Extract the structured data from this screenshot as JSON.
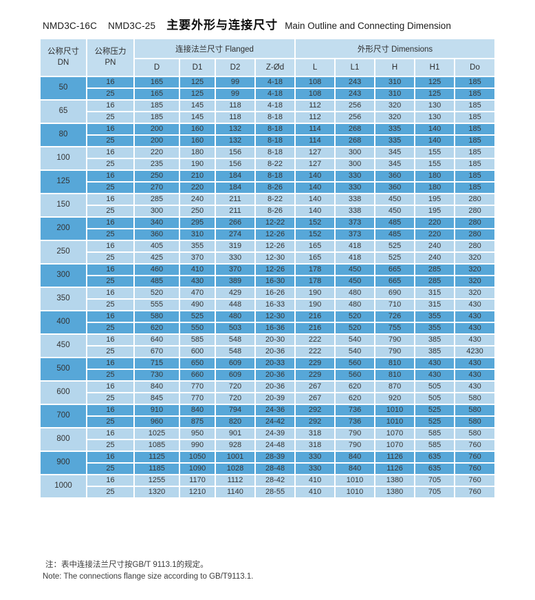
{
  "title": {
    "model_a": "NMD3C-16C",
    "model_b": "NMD3C-25",
    "heading_cn": "主要外形与连接尺寸",
    "heading_en": "Main Outline and Connecting Dimension"
  },
  "colors": {
    "band_dark": "#57a7d8",
    "band_light": "#b5d6ec",
    "header_bg": "#c2ddef",
    "grid_line": "#ffffff",
    "text": "#333333"
  },
  "table": {
    "header": {
      "dn_cn": "公称尺寸",
      "dn_en": "DN",
      "pn_cn": "公称压力",
      "pn_en": "PN",
      "flanged_group": "连接法兰尺寸 Flanged",
      "dimensions_group": "外形尺寸 Dimensions",
      "flanged_cols": [
        "D",
        "D1",
        "D2",
        "Z-Ød"
      ],
      "dimension_cols": [
        "L",
        "L1",
        "H",
        "H1",
        "Do"
      ]
    },
    "groups": [
      {
        "dn": "50",
        "rows": [
          [
            "16",
            "165",
            "125",
            "99",
            "4-18",
            "108",
            "243",
            "310",
            "125",
            "185"
          ],
          [
            "25",
            "165",
            "125",
            "99",
            "4-18",
            "108",
            "243",
            "310",
            "125",
            "185"
          ]
        ]
      },
      {
        "dn": "65",
        "rows": [
          [
            "16",
            "185",
            "145",
            "118",
            "4-18",
            "112",
            "256",
            "320",
            "130",
            "185"
          ],
          [
            "25",
            "185",
            "145",
            "118",
            "8-18",
            "112",
            "256",
            "320",
            "130",
            "185"
          ]
        ]
      },
      {
        "dn": "80",
        "rows": [
          [
            "16",
            "200",
            "160",
            "132",
            "8-18",
            "114",
            "268",
            "335",
            "140",
            "185"
          ],
          [
            "25",
            "200",
            "160",
            "132",
            "8-18",
            "114",
            "268",
            "335",
            "140",
            "185"
          ]
        ]
      },
      {
        "dn": "100",
        "rows": [
          [
            "16",
            "220",
            "180",
            "156",
            "8-18",
            "127",
            "300",
            "345",
            "155",
            "185"
          ],
          [
            "25",
            "235",
            "190",
            "156",
            "8-22",
            "127",
            "300",
            "345",
            "155",
            "185"
          ]
        ]
      },
      {
        "dn": "125",
        "rows": [
          [
            "16",
            "250",
            "210",
            "184",
            "8-18",
            "140",
            "330",
            "360",
            "180",
            "185"
          ],
          [
            "25",
            "270",
            "220",
            "184",
            "8-26",
            "140",
            "330",
            "360",
            "180",
            "185"
          ]
        ]
      },
      {
        "dn": "150",
        "rows": [
          [
            "16",
            "285",
            "240",
            "211",
            "8-22",
            "140",
            "338",
            "450",
            "195",
            "280"
          ],
          [
            "25",
            "300",
            "250",
            "211",
            "8-26",
            "140",
            "338",
            "450",
            "195",
            "280"
          ]
        ]
      },
      {
        "dn": "200",
        "rows": [
          [
            "16",
            "340",
            "295",
            "266",
            "12-22",
            "152",
            "373",
            "485",
            "220",
            "280"
          ],
          [
            "25",
            "360",
            "310",
            "274",
            "12-26",
            "152",
            "373",
            "485",
            "220",
            "280"
          ]
        ]
      },
      {
        "dn": "250",
        "rows": [
          [
            "16",
            "405",
            "355",
            "319",
            "12-26",
            "165",
            "418",
            "525",
            "240",
            "280"
          ],
          [
            "25",
            "425",
            "370",
            "330",
            "12-30",
            "165",
            "418",
            "525",
            "240",
            "320"
          ]
        ]
      },
      {
        "dn": "300",
        "rows": [
          [
            "16",
            "460",
            "410",
            "370",
            "12-26",
            "178",
            "450",
            "665",
            "285",
            "320"
          ],
          [
            "25",
            "485",
            "430",
            "389",
            "16-30",
            "178",
            "450",
            "665",
            "285",
            "320"
          ]
        ]
      },
      {
        "dn": "350",
        "rows": [
          [
            "16",
            "520",
            "470",
            "429",
            "16-26",
            "190",
            "480",
            "690",
            "315",
            "320"
          ],
          [
            "25",
            "555",
            "490",
            "448",
            "16-33",
            "190",
            "480",
            "710",
            "315",
            "430"
          ]
        ]
      },
      {
        "dn": "400",
        "rows": [
          [
            "16",
            "580",
            "525",
            "480",
            "12-30",
            "216",
            "520",
            "726",
            "355",
            "430"
          ],
          [
            "25",
            "620",
            "550",
            "503",
            "16-36",
            "216",
            "520",
            "755",
            "355",
            "430"
          ]
        ]
      },
      {
        "dn": "450",
        "rows": [
          [
            "16",
            "640",
            "585",
            "548",
            "20-30",
            "222",
            "540",
            "790",
            "385",
            "430"
          ],
          [
            "25",
            "670",
            "600",
            "548",
            "20-36",
            "222",
            "540",
            "790",
            "385",
            "4230"
          ]
        ]
      },
      {
        "dn": "500",
        "rows": [
          [
            "16",
            "715",
            "650",
            "609",
            "20-33",
            "229",
            "560",
            "810",
            "430",
            "430"
          ],
          [
            "25",
            "730",
            "660",
            "609",
            "20-36",
            "229",
            "560",
            "810",
            "430",
            "430"
          ]
        ]
      },
      {
        "dn": "600",
        "rows": [
          [
            "16",
            "840",
            "770",
            "720",
            "20-36",
            "267",
            "620",
            "870",
            "505",
            "430"
          ],
          [
            "25",
            "845",
            "770",
            "720",
            "20-39",
            "267",
            "620",
            "920",
            "505",
            "580"
          ]
        ]
      },
      {
        "dn": "700",
        "rows": [
          [
            "16",
            "910",
            "840",
            "794",
            "24-36",
            "292",
            "736",
            "1010",
            "525",
            "580"
          ],
          [
            "25",
            "960",
            "875",
            "820",
            "24-42",
            "292",
            "736",
            "1010",
            "525",
            "580"
          ]
        ]
      },
      {
        "dn": "800",
        "rows": [
          [
            "16",
            "1025",
            "950",
            "901",
            "24-39",
            "318",
            "790",
            "1070",
            "585",
            "580"
          ],
          [
            "25",
            "1085",
            "990",
            "928",
            "24-48",
            "318",
            "790",
            "1070",
            "585",
            "760"
          ]
        ]
      },
      {
        "dn": "900",
        "rows": [
          [
            "16",
            "1125",
            "1050",
            "1001",
            "28-39",
            "330",
            "840",
            "1126",
            "635",
            "760"
          ],
          [
            "25",
            "1185",
            "1090",
            "1028",
            "28-48",
            "330",
            "840",
            "1126",
            "635",
            "760"
          ]
        ]
      },
      {
        "dn": "1000",
        "rows": [
          [
            "16",
            "1255",
            "1170",
            "1112",
            "28-42",
            "410",
            "1010",
            "1380",
            "705",
            "760"
          ],
          [
            "25",
            "1320",
            "1210",
            "1140",
            "28-55",
            "410",
            "1010",
            "1380",
            "705",
            "760"
          ]
        ]
      }
    ]
  },
  "notes": {
    "cn": "注：表中连接法兰尺寸按GB/T 9113.1的规定。",
    "en": "Note: The connections flange size according to GB/T9113.1."
  }
}
